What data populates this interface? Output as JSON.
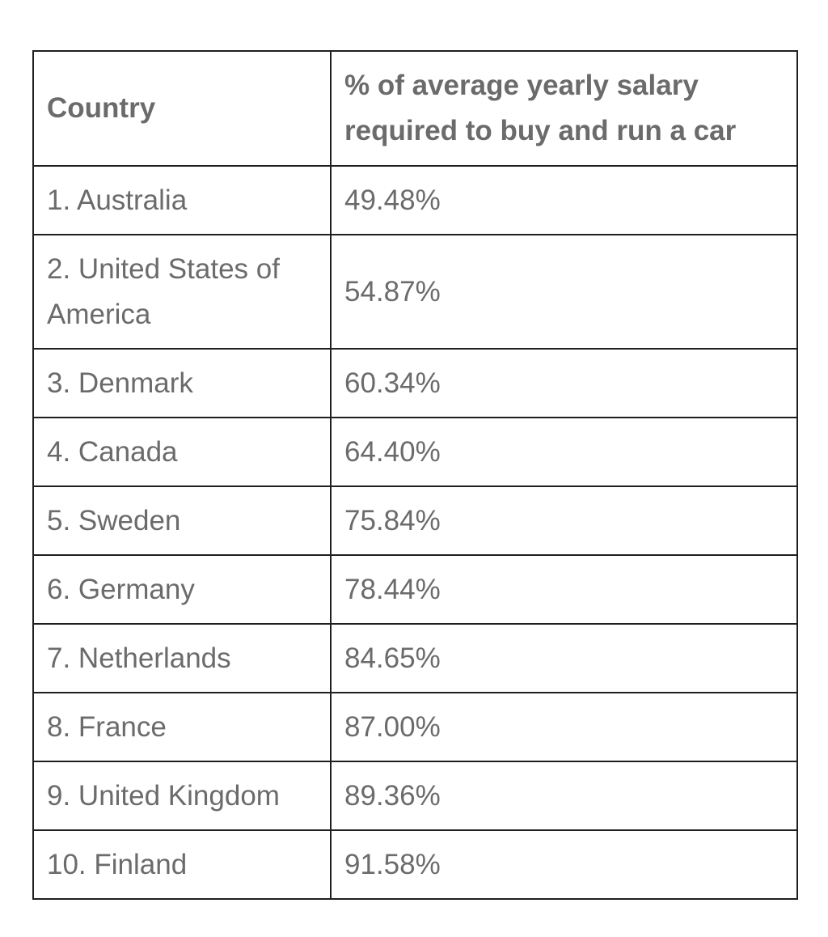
{
  "table": {
    "headers": {
      "country": "Country",
      "percent": "% of average yearly salary required to buy and run a car"
    },
    "rows": [
      {
        "country": "1. Australia",
        "percent": "49.48%"
      },
      {
        "country": "2. United States of America",
        "percent": "54.87%"
      },
      {
        "country": "3. Denmark",
        "percent": "60.34%"
      },
      {
        "country": "4. Canada",
        "percent": "64.40%"
      },
      {
        "country": "5. Sweden",
        "percent": "75.84%"
      },
      {
        "country": "6. Germany",
        "percent": "78.44%"
      },
      {
        "country": "7. Netherlands",
        "percent": "84.65%"
      },
      {
        "country": "8. France",
        "percent": "87.00%"
      },
      {
        "country": "9. United Kingdom",
        "percent": "89.36%"
      },
      {
        "country": "10. Finland",
        "percent": "91.58%"
      }
    ]
  }
}
